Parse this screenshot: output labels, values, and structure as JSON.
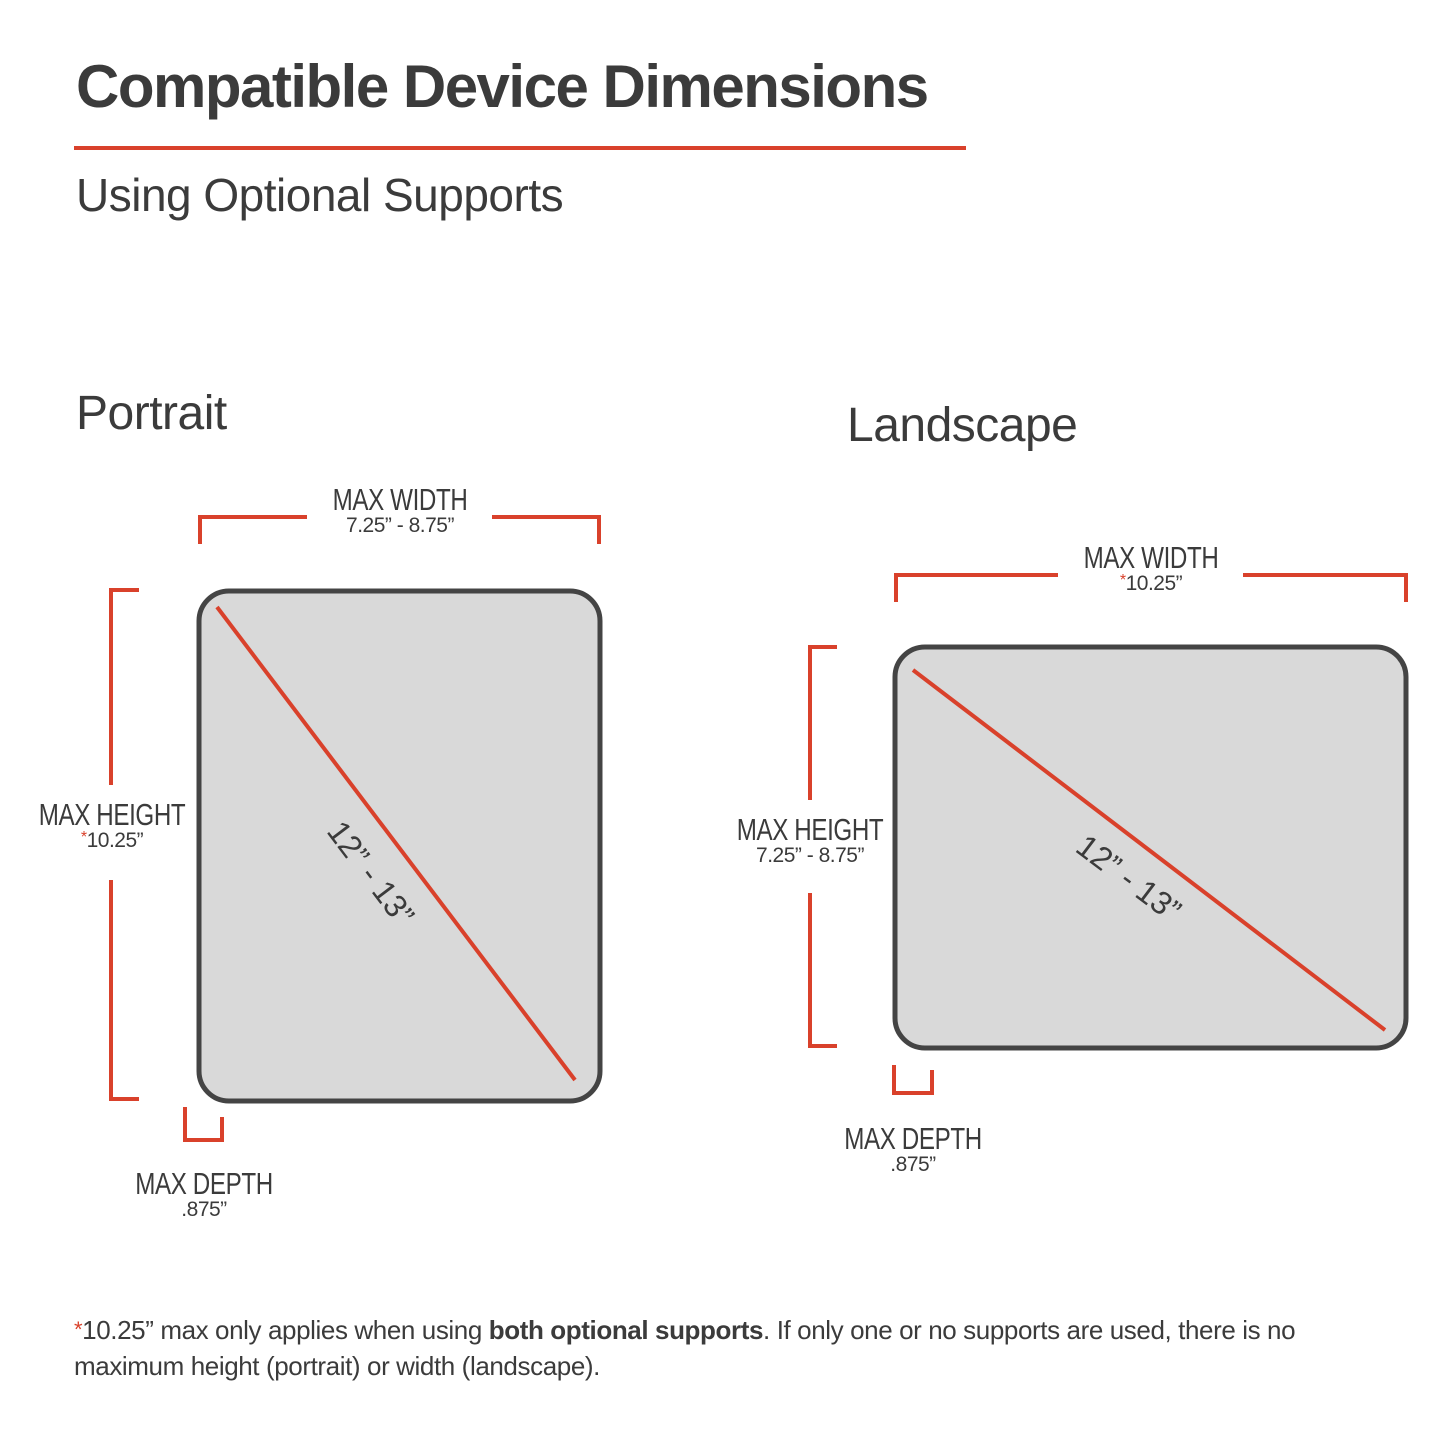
{
  "header": {
    "title": "Compatible Device Dimensions",
    "subtitle": "Using Optional Supports"
  },
  "colors": {
    "accent": "#d9412b",
    "device_fill": "#d9d9d9",
    "device_border": "#444444",
    "text": "#3b3b3b"
  },
  "portrait": {
    "title": "Portrait",
    "max_width": {
      "label": "MAX WIDTH",
      "value": "7.25” - 8.75”"
    },
    "max_height": {
      "label": "MAX HEIGHT",
      "asterisk": "*",
      "value": "10.25”"
    },
    "max_depth": {
      "label": "MAX DEPTH",
      "value": ".875”"
    },
    "diagonal": "12” - 13”"
  },
  "landscape": {
    "title": "Landscape",
    "max_width": {
      "label": "MAX WIDTH",
      "asterisk": "*",
      "value": "10.25”"
    },
    "max_height": {
      "label": "MAX HEIGHT",
      "value": "7.25” - 8.75”"
    },
    "max_depth": {
      "label": "MAX DEPTH",
      "value": ".875”"
    },
    "diagonal": "12” - 13”"
  },
  "footnote": {
    "asterisk": "*",
    "text_before": "10.25” max only applies when using ",
    "bold": "both optional supports",
    "text_after": ". If only one or no supports are used, there is no maximum height (portrait) or width (landscape)."
  }
}
